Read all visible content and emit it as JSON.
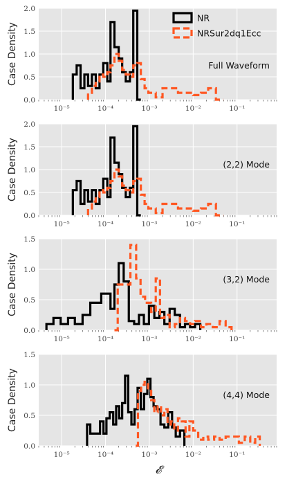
{
  "figure": {
    "ylabel": "Case Density",
    "xlabel": "𝓔",
    "legend": [
      {
        "name": "NR",
        "color": "#000000",
        "style": "solid"
      },
      {
        "name": "NRSur2dq1Ecc",
        "color": "#ff5722",
        "style": "dashed"
      }
    ]
  },
  "chart_data": [
    {
      "type": "step-histogram",
      "label": "Full Waveform",
      "xscale": "log",
      "xlim": [
        3e-06,
        0.8
      ],
      "ylim": [
        0,
        2.0
      ],
      "yticks": [
        0.0,
        0.5,
        1.0,
        1.5,
        2.0
      ],
      "ytick_labels": [
        "0.0",
        "0.5",
        "1.0",
        "1.5",
        "2.0"
      ],
      "xticks": [
        1e-05,
        0.0001,
        0.001,
        0.01,
        0.1
      ],
      "xtick_labels": [
        "10⁻⁵",
        "10⁻⁴",
        "10⁻³",
        "10⁻²",
        "10⁻¹"
      ],
      "legend_position": "top-right",
      "series": [
        {
          "name": "NR",
          "edges": [
            1.8e-05,
            2.2e-05,
            2.7e-05,
            3.3e-05,
            4e-05,
            4.9e-05,
            6e-05,
            7.3e-05,
            8.9e-05,
            0.00011,
            0.00013,
            0.00016,
            0.0002,
            0.00024,
            0.00029,
            0.00036,
            0.00043,
            0.00053,
            0.00064
          ],
          "values": [
            0.55,
            0.75,
            0.25,
            0.55,
            0.3,
            0.55,
            0.25,
            0.55,
            0.8,
            0.4,
            1.7,
            1.15,
            0.9,
            0.6,
            0.4,
            0.6,
            1.95,
            0.0
          ]
        },
        {
          "name": "NRSur2dq1Ecc",
          "edges": [
            4e-05,
            4.9e-05,
            6e-05,
            7.3e-05,
            8.9e-05,
            0.00011,
            0.00013,
            0.00016,
            0.0002,
            0.00024,
            0.00029,
            0.00036,
            0.00043,
            0.00053,
            0.00064,
            0.00078,
            0.00095,
            0.0014,
            0.002,
            0.003,
            0.0045,
            0.007,
            0.01,
            0.015,
            0.022,
            0.033,
            0.049
          ],
          "values": [
            0.15,
            0.3,
            0.4,
            0.55,
            0.5,
            0.6,
            0.75,
            1.0,
            0.85,
            0.65,
            0.55,
            0.5,
            0.75,
            0.8,
            0.45,
            0.25,
            0.15,
            0.05,
            0.25,
            0.25,
            0.15,
            0.15,
            0.1,
            0.15,
            0.25,
            0.0
          ]
        }
      ]
    },
    {
      "type": "step-histogram",
      "label": "(2,2) Mode",
      "xscale": "log",
      "xlim": [
        3e-06,
        0.8
      ],
      "ylim": [
        0,
        2.0
      ],
      "yticks": [
        0.0,
        0.5,
        1.0,
        1.5,
        2.0
      ],
      "ytick_labels": [
        "0.0",
        "0.5",
        "1.0",
        "1.5",
        "2.0"
      ],
      "xticks": [
        1e-05,
        0.0001,
        0.001,
        0.01,
        0.1
      ],
      "xtick_labels": [
        "10⁻⁵",
        "10⁻⁴",
        "10⁻³",
        "10⁻²",
        "10⁻¹"
      ],
      "series": [
        {
          "name": "NR",
          "edges": [
            1.8e-05,
            2.2e-05,
            2.7e-05,
            3.3e-05,
            4e-05,
            4.9e-05,
            6e-05,
            7.3e-05,
            8.9e-05,
            0.00011,
            0.00013,
            0.00016,
            0.0002,
            0.00024,
            0.00029,
            0.00036,
            0.00043,
            0.00053,
            0.00064
          ],
          "values": [
            0.55,
            0.75,
            0.25,
            0.55,
            0.3,
            0.55,
            0.25,
            0.55,
            0.8,
            0.4,
            1.7,
            1.15,
            0.9,
            0.6,
            0.4,
            0.6,
            1.95,
            0.0
          ]
        },
        {
          "name": "NRSur2dq1Ecc",
          "edges": [
            4e-05,
            4.9e-05,
            6e-05,
            7.3e-05,
            8.9e-05,
            0.00011,
            0.00013,
            0.00016,
            0.0002,
            0.00024,
            0.00029,
            0.00036,
            0.00043,
            0.00053,
            0.00064,
            0.00078,
            0.00095,
            0.0014,
            0.002,
            0.003,
            0.0045,
            0.007,
            0.01,
            0.015,
            0.022,
            0.033,
            0.049
          ],
          "values": [
            0.15,
            0.3,
            0.4,
            0.55,
            0.5,
            0.6,
            0.75,
            1.0,
            0.85,
            0.65,
            0.55,
            0.5,
            0.75,
            0.8,
            0.45,
            0.25,
            0.15,
            0.05,
            0.25,
            0.25,
            0.15,
            0.15,
            0.1,
            0.15,
            0.25,
            0.0
          ]
        }
      ]
    },
    {
      "type": "step-histogram",
      "label": "(3,2) Mode",
      "xscale": "log",
      "xlim": [
        3e-06,
        0.8
      ],
      "ylim": [
        0,
        1.5
      ],
      "yticks": [
        0.0,
        0.5,
        1.0,
        1.5
      ],
      "ytick_labels": [
        "0.0",
        "0.5",
        "1.0",
        "1.5"
      ],
      "xticks": [
        1e-05,
        0.0001,
        0.001,
        0.01,
        0.1
      ],
      "xtick_labels": [
        "10⁻⁵",
        "10⁻⁴",
        "10⁻³",
        "10⁻²",
        "10⁻¹"
      ],
      "series": [
        {
          "name": "NR",
          "edges": [
            4.5e-06,
            6.5e-06,
            9.5e-06,
            1.4e-05,
            2e-05,
            3e-05,
            4.5e-05,
            8e-05,
            0.00013,
            0.00016,
            0.0002,
            0.00026,
            0.00034,
            0.00045,
            0.00058,
            0.00075,
            0.00098,
            0.0013,
            0.0017,
            0.0022,
            0.0029,
            0.0038,
            0.005,
            0.0065,
            0.0085,
            0.011,
            0.0145
          ],
          "values": [
            0.1,
            0.2,
            0.1,
            0.2,
            0.1,
            0.25,
            0.45,
            0.6,
            0.35,
            0.75,
            1.1,
            0.8,
            0.15,
            0.1,
            0.25,
            0.1,
            0.4,
            0.2,
            0.3,
            0.1,
            0.35,
            0.25,
            0.05,
            0.1,
            0.05,
            0.1,
            0.0
          ]
        },
        {
          "name": "NRSur2dq1Ecc",
          "edges": [
            0.00016,
            0.00019,
            0.00026,
            0.00037,
            0.0005,
            0.00063,
            0.0008,
            0.0011,
            0.0014,
            0.00175,
            0.0022,
            0.0029,
            0.0038,
            0.005,
            0.0065,
            0.0085,
            0.011,
            0.015,
            0.02,
            0.028,
            0.04,
            0.055,
            0.075
          ],
          "values": [
            0.0,
            0.75,
            0.75,
            1.4,
            0.85,
            0.55,
            0.45,
            0.3,
            0.85,
            0.2,
            0.25,
            0.05,
            0.1,
            0.2,
            0.15,
            0.1,
            0.15,
            0.05,
            0.1,
            0.05,
            0.15,
            0.05
          ]
        }
      ]
    },
    {
      "type": "step-histogram",
      "label": "(4,4) Mode",
      "xscale": "log",
      "xlim": [
        3e-06,
        0.8
      ],
      "ylim": [
        0,
        1.5
      ],
      "yticks": [
        0.0,
        0.5,
        1.0,
        1.5
      ],
      "ytick_labels": [
        "0.0",
        "0.5",
        "1.0",
        "1.5"
      ],
      "xticks": [
        1e-05,
        0.0001,
        0.001,
        0.01,
        0.1
      ],
      "xtick_labels": [
        "10⁻⁵",
        "10⁻⁴",
        "10⁻³",
        "10⁻²",
        "10⁻¹"
      ],
      "series": [
        {
          "name": "NR",
          "edges": [
            3.8e-05,
            4.5e-05,
            6e-05,
            7.5e-05,
            9e-05,
            0.000105,
            0.000125,
            0.00015,
            0.000175,
            0.000205,
            0.00024,
            0.00028,
            0.00033,
            0.00039,
            0.00046,
            0.00054,
            0.00064,
            0.00076,
            0.0009,
            0.00106,
            0.00125,
            0.0015,
            0.0018,
            0.0022,
            0.0027,
            0.0033,
            0.004,
            0.005,
            0.0063
          ],
          "values": [
            0.35,
            0.2,
            0.2,
            0.4,
            0.2,
            0.45,
            0.55,
            0.35,
            0.65,
            0.45,
            0.7,
            1.15,
            0.55,
            0.35,
            0.6,
            0.95,
            0.6,
            0.85,
            1.1,
            0.8,
            0.65,
            0.6,
            0.35,
            0.3,
            0.55,
            0.3,
            0.15,
            0.25
          ]
        },
        {
          "name": "NRSur2dq1Ecc",
          "edges": [
            0.00049,
            0.00055,
            0.00065,
            0.00078,
            0.00093,
            0.0011,
            0.0013,
            0.00155,
            0.00185,
            0.0022,
            0.0026,
            0.0031,
            0.0037,
            0.0045,
            0.0055,
            0.0067,
            0.0082,
            0.01,
            0.013,
            0.017,
            0.022,
            0.03,
            0.04,
            0.055,
            0.08,
            0.11,
            0.15,
            0.2,
            0.26,
            0.33
          ],
          "values": [
            0.0,
            0.9,
            1.0,
            1.05,
            0.9,
            0.75,
            0.55,
            0.65,
            0.5,
            0.6,
            0.35,
            0.4,
            0.25,
            0.45,
            0.4,
            0.15,
            0.4,
            0.25,
            0.1,
            0.15,
            0.1,
            0.15,
            0.1,
            0.15,
            0.15,
            0.05,
            0.15,
            0.05,
            0.15
          ]
        }
      ]
    }
  ]
}
